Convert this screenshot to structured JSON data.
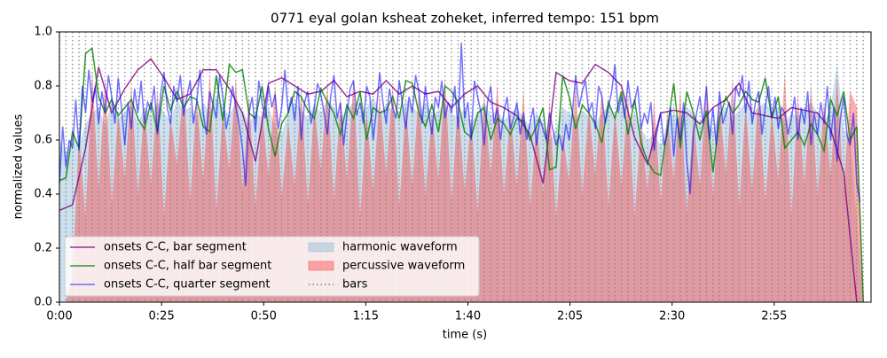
{
  "chart_data": {
    "type": "line",
    "title": "0771 eyal golan ksheat zoheket, inferred tempo: 151 bpm",
    "xlabel": "time (s)",
    "ylabel": "normalized values",
    "xlim": [
      0,
      198.7
    ],
    "ylim": [
      0,
      1
    ],
    "xticks": [
      {
        "value": 0,
        "label": "0:00"
      },
      {
        "value": 25,
        "label": "0:25"
      },
      {
        "value": 50,
        "label": "0:50"
      },
      {
        "value": 75,
        "label": "1:15"
      },
      {
        "value": 100,
        "label": "1:40"
      },
      {
        "value": 125,
        "label": "2:05"
      },
      {
        "value": 150,
        "label": "2:30"
      },
      {
        "value": 175,
        "label": "2:55"
      }
    ],
    "yticks": [
      {
        "value": 0,
        "label": "0.0"
      },
      {
        "value": 0.2,
        "label": "0.2"
      },
      {
        "value": 0.4,
        "label": "0.4"
      },
      {
        "value": 0.6,
        "label": "0.6"
      },
      {
        "value": 0.8,
        "label": "0.8"
      },
      {
        "value": 1,
        "label": "1.0"
      }
    ],
    "legend": "lower left",
    "legend_columns": 2,
    "x": [
      0,
      1.6,
      3.2,
      4.8,
      6.4,
      8,
      9.6,
      11.2,
      12.8,
      14.4,
      16,
      17.6,
      19.2,
      20.8,
      22.4,
      24,
      25.6,
      27.2,
      28.8,
      30.4,
      32,
      33.6,
      35.2,
      36.8,
      38.4,
      40,
      41.6,
      43.2,
      44.8,
      46.4,
      48,
      49.6,
      51.2,
      52.8,
      54.4,
      56,
      57.6,
      59.2,
      60.8,
      62.4,
      64,
      65.6,
      67.2,
      68.8,
      70.4,
      72,
      73.6,
      75.2,
      76.8,
      78.4,
      80,
      81.6,
      83.2,
      84.8,
      86.4,
      88,
      89.6,
      91.2,
      92.8,
      94.4,
      96,
      97.6,
      99.2,
      100.8,
      102.4,
      104,
      105.6,
      107.2,
      108.8,
      110.4,
      112,
      113.6,
      115.2,
      116.8,
      118.4,
      120,
      121.6,
      123.2,
      124.8,
      126.4,
      128,
      129.6,
      131.2,
      132.8,
      134.4,
      136,
      137.6,
      139.2,
      140.8,
      142.4,
      144,
      145.6,
      147.2,
      148.8,
      150.4,
      152,
      153.6,
      155.2,
      156.8,
      158.4,
      160,
      161.6,
      163.2,
      164.8,
      166.4,
      168,
      169.6,
      171.2,
      172.8,
      174.4,
      176,
      177.6,
      179.2,
      180.8,
      182.4,
      184,
      185.6,
      187.2,
      188.8,
      190.4,
      192,
      193.6,
      195.2,
      196.8
    ],
    "series": [
      {
        "name": "onsets C-C, bar segment",
        "kind": "line",
        "color": "#800080",
        "alpha": 0.8,
        "x": [
          0,
          3.2,
          6.4,
          9.6,
          12.8,
          16,
          19.2,
          22.4,
          25.6,
          28.8,
          32,
          35.2,
          38.4,
          41.6,
          44.8,
          48,
          51.2,
          54.4,
          57.6,
          60.8,
          64,
          67.2,
          70.4,
          73.6,
          76.8,
          80,
          83.2,
          86.4,
          89.6,
          92.8,
          96,
          99.2,
          102.4,
          105.6,
          108.8,
          112,
          115.2,
          118.4,
          121.6,
          124.8,
          128,
          131.2,
          134.4,
          137.6,
          140.8,
          144,
          147.2,
          150.4,
          153.6,
          156.8,
          160,
          163.2,
          166.4,
          169.6,
          172.8,
          176,
          179.2,
          182.4,
          185.6,
          188.8,
          192,
          195.2
        ],
        "values": [
          0.34,
          0.36,
          0.57,
          0.87,
          0.7,
          0.79,
          0.86,
          0.9,
          0.83,
          0.75,
          0.77,
          0.86,
          0.86,
          0.79,
          0.7,
          0.52,
          0.81,
          0.83,
          0.8,
          0.77,
          0.78,
          0.82,
          0.76,
          0.78,
          0.77,
          0.82,
          0.77,
          0.8,
          0.77,
          0.78,
          0.72,
          0.77,
          0.8,
          0.74,
          0.72,
          0.69,
          0.62,
          0.44,
          0.85,
          0.82,
          0.81,
          0.88,
          0.85,
          0.8,
          0.61,
          0.51,
          0.7,
          0.71,
          0.7,
          0.66,
          0.72,
          0.75,
          0.81,
          0.7,
          0.69,
          0.68,
          0.72,
          0.71,
          0.7,
          0.64,
          0.48,
          0.0
        ]
      },
      {
        "name": "onsets C-C, half bar segment",
        "kind": "line",
        "color": "#008000",
        "alpha": 0.8,
        "values": [
          0.45,
          0.46,
          0.63,
          0.57,
          0.92,
          0.94,
          0.76,
          0.7,
          0.75,
          0.69,
          0.72,
          0.75,
          0.68,
          0.64,
          0.74,
          0.63,
          0.8,
          0.71,
          0.78,
          0.72,
          0.76,
          0.75,
          0.65,
          0.63,
          0.84,
          0.67,
          0.88,
          0.85,
          0.86,
          0.7,
          0.68,
          0.8,
          0.64,
          0.54,
          0.66,
          0.7,
          0.78,
          0.76,
          0.71,
          0.68,
          0.79,
          0.74,
          0.7,
          0.62,
          0.73,
          0.68,
          0.78,
          0.6,
          0.72,
          0.7,
          0.71,
          0.76,
          0.68,
          0.82,
          0.81,
          0.7,
          0.65,
          0.73,
          0.63,
          0.8,
          0.78,
          0.74,
          0.63,
          0.61,
          0.7,
          0.72,
          0.6,
          0.68,
          0.66,
          0.62,
          0.68,
          0.67,
          0.6,
          0.65,
          0.72,
          0.49,
          0.5,
          0.84,
          0.76,
          0.64,
          0.73,
          0.7,
          0.66,
          0.59,
          0.74,
          0.68,
          0.78,
          0.62,
          0.75,
          0.59,
          0.52,
          0.48,
          0.47,
          0.64,
          0.81,
          0.57,
          0.78,
          0.7,
          0.6,
          0.71,
          0.48,
          0.68,
          0.76,
          0.7,
          0.73,
          0.78,
          0.75,
          0.74,
          0.83,
          0.68,
          0.76,
          0.57,
          0.6,
          0.63,
          0.58,
          0.66,
          0.62,
          0.56,
          0.75,
          0.69,
          0.78,
          0.6,
          0.65,
          0.0
        ]
      },
      {
        "name": "onsets C-C, quarter segment",
        "kind": "line",
        "color": "#0000ff",
        "alpha": 0.55,
        "x": [
          0,
          0.8,
          1.6,
          2.4,
          3.2,
          4,
          4.8,
          5.6,
          6.4,
          7.2,
          8,
          8.8,
          9.6,
          10.4,
          11.2,
          12,
          12.8,
          13.6,
          14.4,
          15.2,
          16,
          16.8,
          17.6,
          18.4,
          19.2,
          20,
          20.8,
          21.6,
          22.4,
          23.2,
          24,
          24.8,
          25.6,
          26.4,
          27.2,
          28,
          28.8,
          29.6,
          30.4,
          31.2,
          32,
          32.8,
          33.6,
          34.4,
          35.2,
          36,
          36.8,
          37.6,
          38.4,
          39.2,
          40,
          40.8,
          41.6,
          42.4,
          43.2,
          44,
          44.8,
          45.6,
          46.4,
          47.2,
          48,
          48.8,
          49.6,
          50.4,
          51.2,
          52,
          52.8,
          53.6,
          54.4,
          55.2,
          56,
          56.8,
          57.6,
          58.4,
          59.2,
          60,
          60.8,
          61.6,
          62.4,
          63.2,
          64,
          64.8,
          65.6,
          66.4,
          67.2,
          68,
          68.8,
          69.6,
          70.4,
          71.2,
          72,
          72.8,
          73.6,
          74.4,
          75.2,
          76,
          76.8,
          77.6,
          78.4,
          79.2,
          80,
          80.8,
          81.6,
          82.4,
          83.2,
          84,
          84.8,
          85.6,
          86.4,
          87.2,
          88,
          88.8,
          89.6,
          90.4,
          91.2,
          92,
          92.8,
          93.6,
          94.4,
          95.2,
          96,
          96.8,
          97.6,
          98.4,
          99.2,
          100,
          100.8,
          101.6,
          102.4,
          103.2,
          104,
          104.8,
          105.6,
          106.4,
          107.2,
          108,
          108.8,
          109.6,
          110.4,
          111.2,
          112,
          112.8,
          113.6,
          114.4,
          115.2,
          116,
          116.8,
          117.6,
          118.4,
          119.2,
          120,
          120.8,
          121.6,
          122.4,
          123.2,
          124,
          124.8,
          125.6,
          126.4,
          127.2,
          128,
          128.8,
          129.6,
          130.4,
          131.2,
          132,
          132.8,
          133.6,
          134.4,
          135.2,
          136,
          136.8,
          137.6,
          138.4,
          139.2,
          140,
          140.8,
          141.6,
          142.4,
          143.2,
          144,
          144.8,
          145.6,
          146.4,
          147.2,
          148,
          148.8,
          149.6,
          150.4,
          151.2,
          152,
          152.8,
          153.6,
          154.4,
          155.2,
          156,
          156.8,
          157.6,
          158.4,
          159.2,
          160,
          160.8,
          161.6,
          162.4,
          163.2,
          164,
          164.8,
          165.6,
          166.4,
          167.2,
          168,
          168.8,
          169.6,
          170.4,
          171.2,
          172,
          172.8,
          173.6,
          174.4,
          175.2,
          176,
          176.8,
          177.6,
          178.4,
          179.2,
          180,
          180.8,
          181.6,
          182.4,
          183.2,
          184,
          184.8,
          185.6,
          186.4,
          187.2,
          188,
          188.8,
          189.6,
          190.4,
          191.2,
          192,
          192.8,
          193.6,
          194.4,
          195.2,
          196
        ],
        "values": [
          0.44,
          0.65,
          0.5,
          0.6,
          0.57,
          0.75,
          0.56,
          0.8,
          0.7,
          0.86,
          0.74,
          0.8,
          0.66,
          0.78,
          0.7,
          0.84,
          0.76,
          0.66,
          0.83,
          0.72,
          0.58,
          0.74,
          0.64,
          0.79,
          0.7,
          0.82,
          0.66,
          0.74,
          0.71,
          0.8,
          0.62,
          0.77,
          0.85,
          0.72,
          0.66,
          0.8,
          0.74,
          0.84,
          0.69,
          0.76,
          0.82,
          0.66,
          0.74,
          0.86,
          0.7,
          0.62,
          0.78,
          0.73,
          0.68,
          0.84,
          0.76,
          0.64,
          0.7,
          0.8,
          0.72,
          0.66,
          0.57,
          0.43,
          0.7,
          0.76,
          0.63,
          0.82,
          0.74,
          0.68,
          0.8,
          0.72,
          0.77,
          0.64,
          0.72,
          0.86,
          0.7,
          0.76,
          0.67,
          0.8,
          0.6,
          0.74,
          0.78,
          0.66,
          0.72,
          0.81,
          0.77,
          0.7,
          0.62,
          0.76,
          0.84,
          0.68,
          0.74,
          0.58,
          0.7,
          0.79,
          0.82,
          0.69,
          0.74,
          0.66,
          0.8,
          0.76,
          0.6,
          0.71,
          0.85,
          0.74,
          0.66,
          0.79,
          0.72,
          0.68,
          0.82,
          0.73,
          0.64,
          0.76,
          0.7,
          0.84,
          0.78,
          0.66,
          0.8,
          0.7,
          0.62,
          0.76,
          0.72,
          0.82,
          0.68,
          0.74,
          0.7,
          0.8,
          0.64,
          0.96,
          0.68,
          0.74,
          0.6,
          0.82,
          0.76,
          0.7,
          0.58,
          0.74,
          0.8,
          0.66,
          0.72,
          0.6,
          0.7,
          0.76,
          0.64,
          0.68,
          0.74,
          0.62,
          0.7,
          0.6,
          0.66,
          0.72,
          0.58,
          0.68,
          0.64,
          0.6,
          0.7,
          0.64,
          0.58,
          0.62,
          0.56,
          0.66,
          0.6,
          0.7,
          0.84,
          0.72,
          0.78,
          0.82,
          0.7,
          0.74,
          0.64,
          0.8,
          0.76,
          0.66,
          0.72,
          0.78,
          0.88,
          0.7,
          0.76,
          0.68,
          0.82,
          0.72,
          0.74,
          0.8,
          0.64,
          0.7,
          0.66,
          0.74,
          0.56,
          0.64,
          0.7,
          0.58,
          0.62,
          0.72,
          0.54,
          0.68,
          0.6,
          0.74,
          0.52,
          0.4,
          0.62,
          0.7,
          0.76,
          0.66,
          0.8,
          0.6,
          0.72,
          0.58,
          0.78,
          0.66,
          0.7,
          0.74,
          0.62,
          0.8,
          0.76,
          0.84,
          0.7,
          0.82,
          0.66,
          0.74,
          0.78,
          0.62,
          0.72,
          0.8,
          0.68,
          0.76,
          0.64,
          0.72,
          0.7,
          0.62,
          0.68,
          0.76,
          0.6,
          0.72,
          0.66,
          0.78,
          0.58,
          0.7,
          0.62,
          0.74,
          0.66,
          0.8,
          0.6,
          0.72,
          0.52,
          0.68,
          0.76,
          0.62,
          0.58,
          0.7,
          0.44,
          0.37
        ]
      },
      {
        "name": "harmonic waveform",
        "kind": "area",
        "color": "#8fb8d6",
        "alpha": 0.45,
        "values": [
          0.6,
          0.55,
          0.62,
          0.58,
          0.66,
          0.7,
          0.72,
          0.65,
          0.74,
          0.68,
          0.7,
          0.73,
          0.66,
          0.72,
          0.69,
          0.74,
          0.7,
          0.67,
          0.75,
          0.71,
          0.72,
          0.68,
          0.74,
          0.7,
          0.76,
          0.72,
          0.69,
          0.74,
          0.71,
          0.66,
          0.7,
          0.68,
          0.72,
          0.65,
          0.62,
          0.7,
          0.74,
          0.71,
          0.68,
          0.73,
          0.7,
          0.75,
          0.72,
          0.68,
          0.71,
          0.74,
          0.69,
          0.72,
          0.76,
          0.7,
          0.73,
          0.71,
          0.68,
          0.75,
          0.72,
          0.7,
          0.74,
          0.69,
          0.71,
          0.73,
          0.7,
          0.68,
          0.72,
          0.66,
          0.7,
          0.74,
          0.69,
          0.71,
          0.67,
          0.7,
          0.72,
          0.68,
          0.65,
          0.7,
          0.66,
          0.6,
          0.64,
          0.72,
          0.7,
          0.68,
          0.71,
          0.69,
          0.66,
          0.7,
          0.73,
          0.68,
          0.72,
          0.66,
          0.7,
          0.64,
          0.6,
          0.62,
          0.58,
          0.66,
          0.7,
          0.68,
          0.72,
          0.7,
          0.66,
          0.68,
          0.63,
          0.7,
          0.72,
          0.68,
          0.71,
          0.74,
          0.7,
          0.72,
          0.74,
          0.7,
          0.72,
          0.66,
          0.7,
          0.68,
          0.72,
          0.74,
          0.7,
          0.66,
          0.72,
          0.88,
          0.64,
          0.6,
          0.3,
          0.0
        ]
      },
      {
        "name": "percussive waveform",
        "kind": "area",
        "color": "#ff3333",
        "alpha": 0.4,
        "values": [
          0.0,
          0.0,
          0.08,
          0.62,
          0.3,
          0.85,
          0.4,
          0.82,
          0.35,
          0.7,
          0.45,
          0.8,
          0.38,
          0.72,
          0.42,
          0.78,
          0.3,
          0.68,
          0.5,
          0.8,
          0.36,
          0.75,
          0.44,
          0.84,
          0.32,
          0.7,
          0.48,
          0.82,
          0.4,
          0.76,
          0.34,
          0.7,
          0.46,
          0.8,
          0.38,
          0.66,
          0.42,
          0.78,
          0.35,
          0.72,
          0.48,
          0.8,
          0.36,
          0.74,
          0.44,
          0.82,
          0.3,
          0.7,
          0.4,
          0.76,
          0.46,
          0.8,
          0.34,
          0.72,
          0.42,
          0.78,
          0.38,
          0.7,
          0.44,
          0.82,
          0.36,
          0.74,
          0.4,
          0.68,
          0.32,
          0.76,
          0.46,
          0.8,
          0.38,
          0.7,
          0.42,
          0.78,
          0.34,
          0.66,
          0.4,
          0.74,
          0.3,
          0.62,
          0.44,
          0.8,
          0.38,
          0.72,
          0.46,
          0.78,
          0.34,
          0.7,
          0.42,
          0.76,
          0.3,
          0.66,
          0.4,
          0.74,
          0.36,
          0.7,
          0.44,
          0.78,
          0.32,
          0.68,
          0.42,
          0.8,
          0.38,
          0.74,
          0.46,
          0.82,
          0.34,
          0.72,
          0.4,
          0.78,
          0.36,
          0.7,
          0.44,
          0.84,
          0.3,
          0.76,
          0.42,
          0.8,
          0.38,
          0.74,
          0.46,
          0.82,
          0.4,
          0.78,
          0.72,
          0.0
        ]
      },
      {
        "name": "bars",
        "kind": "vlines",
        "color": "#808080",
        "alpha": 0.8
      }
    ]
  }
}
